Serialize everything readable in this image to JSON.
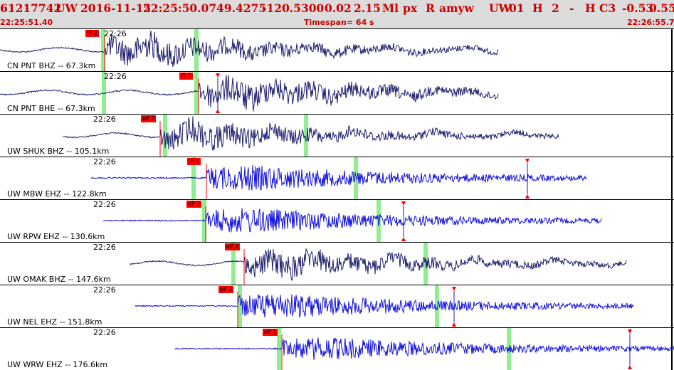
{
  "header": {
    "event_id": "61217742",
    "network": "UW",
    "date": "2016-11-15",
    "time": "22:25:50.07",
    "lat": "49.4275",
    "lon": "-120.5300",
    "depth": "0.02",
    "magnitude": "2.15",
    "mag_type": "Ml",
    "source": "px",
    "review": "R",
    "author": "amyw",
    "version_net": "UW",
    "version": "01",
    "flag_h": "H",
    "count": "2",
    "dash": "-",
    "quality": "H C3",
    "val1": "-0.53",
    "val2": "0.55",
    "start_time": "22:25:51.40",
    "timespan": "Timespan=  64 s",
    "end_time": "22:26:55.77"
  },
  "colors": {
    "red": "#ff0000",
    "dark_trace": "#1e1e6e",
    "blue_trace": "#1111dd",
    "green": "#90ee90"
  },
  "traces": [
    {
      "label": "CN PNT BHZ -- 67.3km",
      "time": "22:26",
      "pick": "iP 2",
      "color": "#1e1e6e",
      "pickX": 147,
      "start": 0,
      "end": 700,
      "green": [
        145,
        276
      ],
      "tri": [],
      "amp": 24,
      "style": "long"
    },
    {
      "label": "CN PNT BHE -- 67.3km",
      "time": "22:26",
      "pick": "iS 1",
      "color": "#1e1e6e",
      "pickX": 279,
      "start": 0,
      "end": 700,
      "green": [
        146,
        276
      ],
      "tri": [
        306
      ],
      "amp": 24,
      "style": "long"
    },
    {
      "label": "UW SHUK BHZ -- 105.1km",
      "time": "22:26",
      "pick": "eP 2",
      "color": "#1e1e6e",
      "pickX": 225,
      "start": 88,
      "end": 785,
      "green": [
        232,
        430
      ],
      "tri": [],
      "amp": 22,
      "style": "long"
    },
    {
      "label": "UW MBW EHZ -- 122.8km",
      "time": "22:26",
      "pick": "iP 1",
      "color": "#1111dd",
      "pickX": 290,
      "start": 128,
      "end": 825,
      "green": [
        272,
        500
      ],
      "tri": [
        741
      ],
      "amp": 22,
      "style": "short"
    },
    {
      "label": "UW RPW EHZ -- 130.6km",
      "time": "22:26",
      "pick": "eP 2",
      "color": "#1111dd",
      "pickX": 289,
      "start": 145,
      "end": 845,
      "green": [
        287,
        532
      ],
      "tri": [
        567
      ],
      "amp": 22,
      "style": "short"
    },
    {
      "label": "UW OMAK BHZ -- 147.6km",
      "time": "22:26",
      "pick": "eP 2",
      "color": "#1e1e6e",
      "pickX": 343,
      "start": 182,
      "end": 880,
      "green": [
        328,
        598
      ],
      "tri": [],
      "amp": 22,
      "style": "long"
    },
    {
      "label": "UW NEL EHZ -- 151.8km",
      "time": "22:26",
      "pick": "eP 2",
      "color": "#1111dd",
      "pickX": 334,
      "start": 190,
      "end": 890,
      "green": [
        337,
        614
      ],
      "tri": [
        638
      ],
      "amp": 22,
      "style": "short"
    },
    {
      "label": "UW WRW EHZ -- 176.6km",
      "time": "22:26",
      "pick": "eP 2",
      "color": "#1111dd",
      "pickX": 396,
      "start": 246,
      "end": 947,
      "green": [
        392,
        715
      ],
      "tri": [
        885
      ],
      "amp": 20,
      "style": "short"
    }
  ]
}
